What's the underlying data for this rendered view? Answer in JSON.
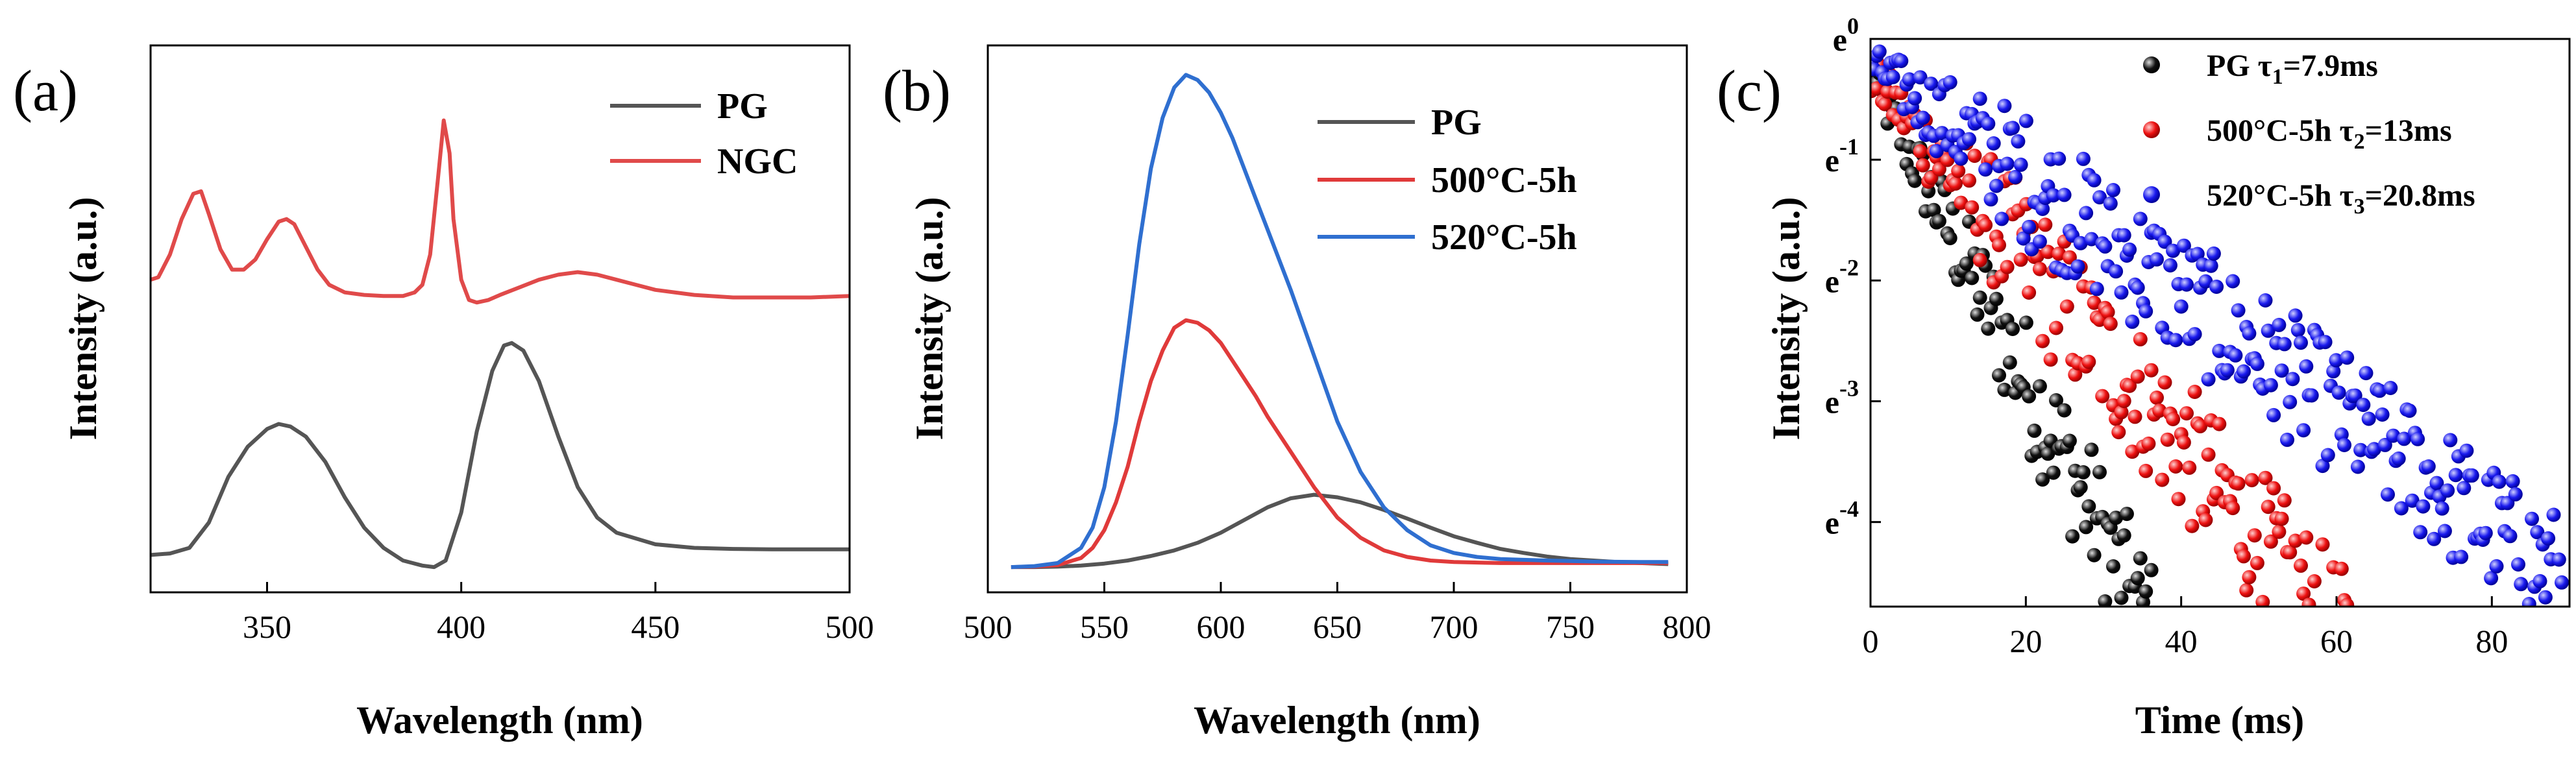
{
  "chart_data": [
    {
      "panel": "(a)",
      "type": "line",
      "title": "",
      "xlabel": "Wavelength (nm)",
      "ylabel": "Intensity (a.u.)",
      "xlim": [
        320,
        500
      ],
      "ylim": [
        0,
        1
      ],
      "xticks": [
        "350",
        "400",
        "450",
        "500"
      ],
      "xtick_values": [
        350,
        400,
        450,
        500
      ],
      "yticks_shown": false,
      "legend_location": "top-right",
      "series": [
        {
          "name": "PG",
          "color": "#555555",
          "x": [
            320,
            325,
            330,
            335,
            340,
            345,
            350,
            353,
            356,
            360,
            365,
            370,
            375,
            380,
            385,
            390,
            393,
            396,
            400,
            404,
            408,
            411,
            413,
            416,
            420,
            425,
            430,
            435,
            440,
            450,
            460,
            470,
            480,
            490,
            500
          ],
          "y": [
            0.036,
            0.039,
            0.05,
            0.1,
            0.19,
            0.25,
            0.285,
            0.295,
            0.29,
            0.27,
            0.22,
            0.15,
            0.09,
            0.05,
            0.025,
            0.015,
            0.012,
            0.025,
            0.12,
            0.28,
            0.4,
            0.45,
            0.455,
            0.44,
            0.38,
            0.27,
            0.17,
            0.11,
            0.08,
            0.057,
            0.05,
            0.048,
            0.047,
            0.047,
            0.047
          ]
        },
        {
          "name": "NGC",
          "color": "#e04a4a",
          "x": [
            320,
            322,
            325,
            328,
            331,
            333,
            335,
            338,
            341,
            344,
            347,
            350,
            353,
            355,
            357,
            360,
            363,
            366,
            370,
            375,
            380,
            385,
            388,
            390,
            392,
            394,
            395.5,
            397,
            398,
            400,
            402,
            404,
            407,
            410,
            415,
            420,
            425,
            430,
            435,
            440,
            445,
            450,
            460,
            470,
            480,
            490,
            500
          ],
          "y": [
            0.58,
            0.585,
            0.63,
            0.7,
            0.75,
            0.755,
            0.71,
            0.64,
            0.6,
            0.6,
            0.62,
            0.66,
            0.695,
            0.7,
            0.69,
            0.645,
            0.6,
            0.57,
            0.555,
            0.55,
            0.548,
            0.548,
            0.555,
            0.57,
            0.63,
            0.78,
            0.895,
            0.83,
            0.7,
            0.58,
            0.54,
            0.535,
            0.54,
            0.55,
            0.565,
            0.58,
            0.59,
            0.595,
            0.59,
            0.58,
            0.57,
            0.56,
            0.55,
            0.545,
            0.545,
            0.545,
            0.548
          ]
        }
      ]
    },
    {
      "panel": "(b)",
      "type": "line",
      "title": "",
      "xlabel": "Wavelength (nm)",
      "ylabel": "Intensity (a.u.)",
      "xlim": [
        500,
        800
      ],
      "ylim": [
        0,
        1
      ],
      "xticks": [
        "500",
        "550",
        "600",
        "650",
        "700",
        "750",
        "800"
      ],
      "xtick_values": [
        500,
        550,
        600,
        650,
        700,
        750,
        800
      ],
      "yticks_shown": false,
      "legend_location": "top-right",
      "series": [
        {
          "name": "PG",
          "color": "#555555",
          "x": [
            510,
            520,
            530,
            540,
            550,
            560,
            570,
            580,
            590,
            600,
            610,
            620,
            630,
            640,
            650,
            660,
            670,
            680,
            690,
            700,
            710,
            720,
            730,
            740,
            750,
            760,
            770,
            780,
            792
          ],
          "y": [
            0.012,
            0.012,
            0.013,
            0.015,
            0.019,
            0.025,
            0.034,
            0.045,
            0.06,
            0.08,
            0.105,
            0.13,
            0.148,
            0.155,
            0.15,
            0.14,
            0.125,
            0.108,
            0.09,
            0.073,
            0.06,
            0.048,
            0.04,
            0.033,
            0.028,
            0.025,
            0.022,
            0.02,
            0.018
          ]
        },
        {
          "name": "500°C-5h",
          "color": "#e03a3a",
          "x": [
            510,
            520,
            530,
            540,
            545,
            550,
            555,
            560,
            565,
            570,
            575,
            580,
            585,
            590,
            595,
            600,
            605,
            610,
            615,
            620,
            630,
            640,
            650,
            660,
            670,
            680,
            690,
            700,
            720,
            740,
            760,
            780,
            792
          ],
          "y": [
            0.012,
            0.013,
            0.016,
            0.03,
            0.05,
            0.085,
            0.14,
            0.21,
            0.3,
            0.38,
            0.44,
            0.485,
            0.5,
            0.495,
            0.48,
            0.455,
            0.42,
            0.385,
            0.35,
            0.31,
            0.24,
            0.17,
            0.11,
            0.07,
            0.045,
            0.032,
            0.025,
            0.022,
            0.02,
            0.02,
            0.02,
            0.02,
            0.02
          ]
        },
        {
          "name": "520°C-5h",
          "color": "#2f6fd0",
          "x": [
            510,
            520,
            530,
            540,
            545,
            550,
            555,
            560,
            565,
            570,
            575,
            580,
            585,
            590,
            595,
            600,
            605,
            610,
            615,
            620,
            630,
            640,
            650,
            660,
            670,
            680,
            690,
            700,
            710,
            720,
            740,
            760,
            780,
            792
          ],
          "y": [
            0.012,
            0.014,
            0.02,
            0.05,
            0.09,
            0.17,
            0.3,
            0.47,
            0.65,
            0.8,
            0.9,
            0.96,
            0.985,
            0.975,
            0.95,
            0.91,
            0.86,
            0.8,
            0.74,
            0.68,
            0.56,
            0.43,
            0.3,
            0.2,
            0.13,
            0.085,
            0.055,
            0.04,
            0.032,
            0.028,
            0.025,
            0.023,
            0.022,
            0.022
          ]
        }
      ]
    },
    {
      "panel": "(c)",
      "type": "scatter",
      "title": "",
      "xlabel": "Time (ms)",
      "ylabel": "Intensity (a.u.)",
      "xlim": [
        0,
        90
      ],
      "ylim": [
        -4.7,
        0
      ],
      "yscale": "ln",
      "xticks": [
        "0",
        "20",
        "40",
        "60",
        "80"
      ],
      "xtick_values": [
        0,
        20,
        40,
        60,
        80
      ],
      "yticks": [
        {
          "base": "e",
          "exp": "0",
          "value": 0
        },
        {
          "base": "e",
          "exp": "-1",
          "value": -1
        },
        {
          "base": "e",
          "exp": "-2",
          "value": -2
        },
        {
          "base": "e",
          "exp": "-3",
          "value": -3
        },
        {
          "base": "e",
          "exp": "-4",
          "value": -4
        }
      ],
      "legend_location": "top-right",
      "series": [
        {
          "name_prefix": "PG ",
          "tau_sub": "1",
          "tau_value": "=7.9ms",
          "color": "#111111",
          "tau_ms": 7.9,
          "amplitude_ln": -0.3,
          "noise": 0.55,
          "t_start": 0.1,
          "t_end": 60,
          "step": 0.35
        },
        {
          "name_prefix": "500°C-5h ",
          "tau_sub": "2",
          "tau_value": "=13ms",
          "color": "#ee1111",
          "tau_ms": 13,
          "amplitude_ln": -0.3,
          "noise": 0.6,
          "t_start": 0.1,
          "t_end": 90,
          "step": 0.35
        },
        {
          "name_prefix": "520°C-5h ",
          "tau_sub": "3",
          "tau_value": "=20.8ms",
          "color": "#1a1aee",
          "tau_ms": 20.8,
          "amplitude_ln": -0.2,
          "noise": 0.55,
          "t_start": 0.1,
          "t_end": 90,
          "step": 0.35
        }
      ]
    }
  ]
}
